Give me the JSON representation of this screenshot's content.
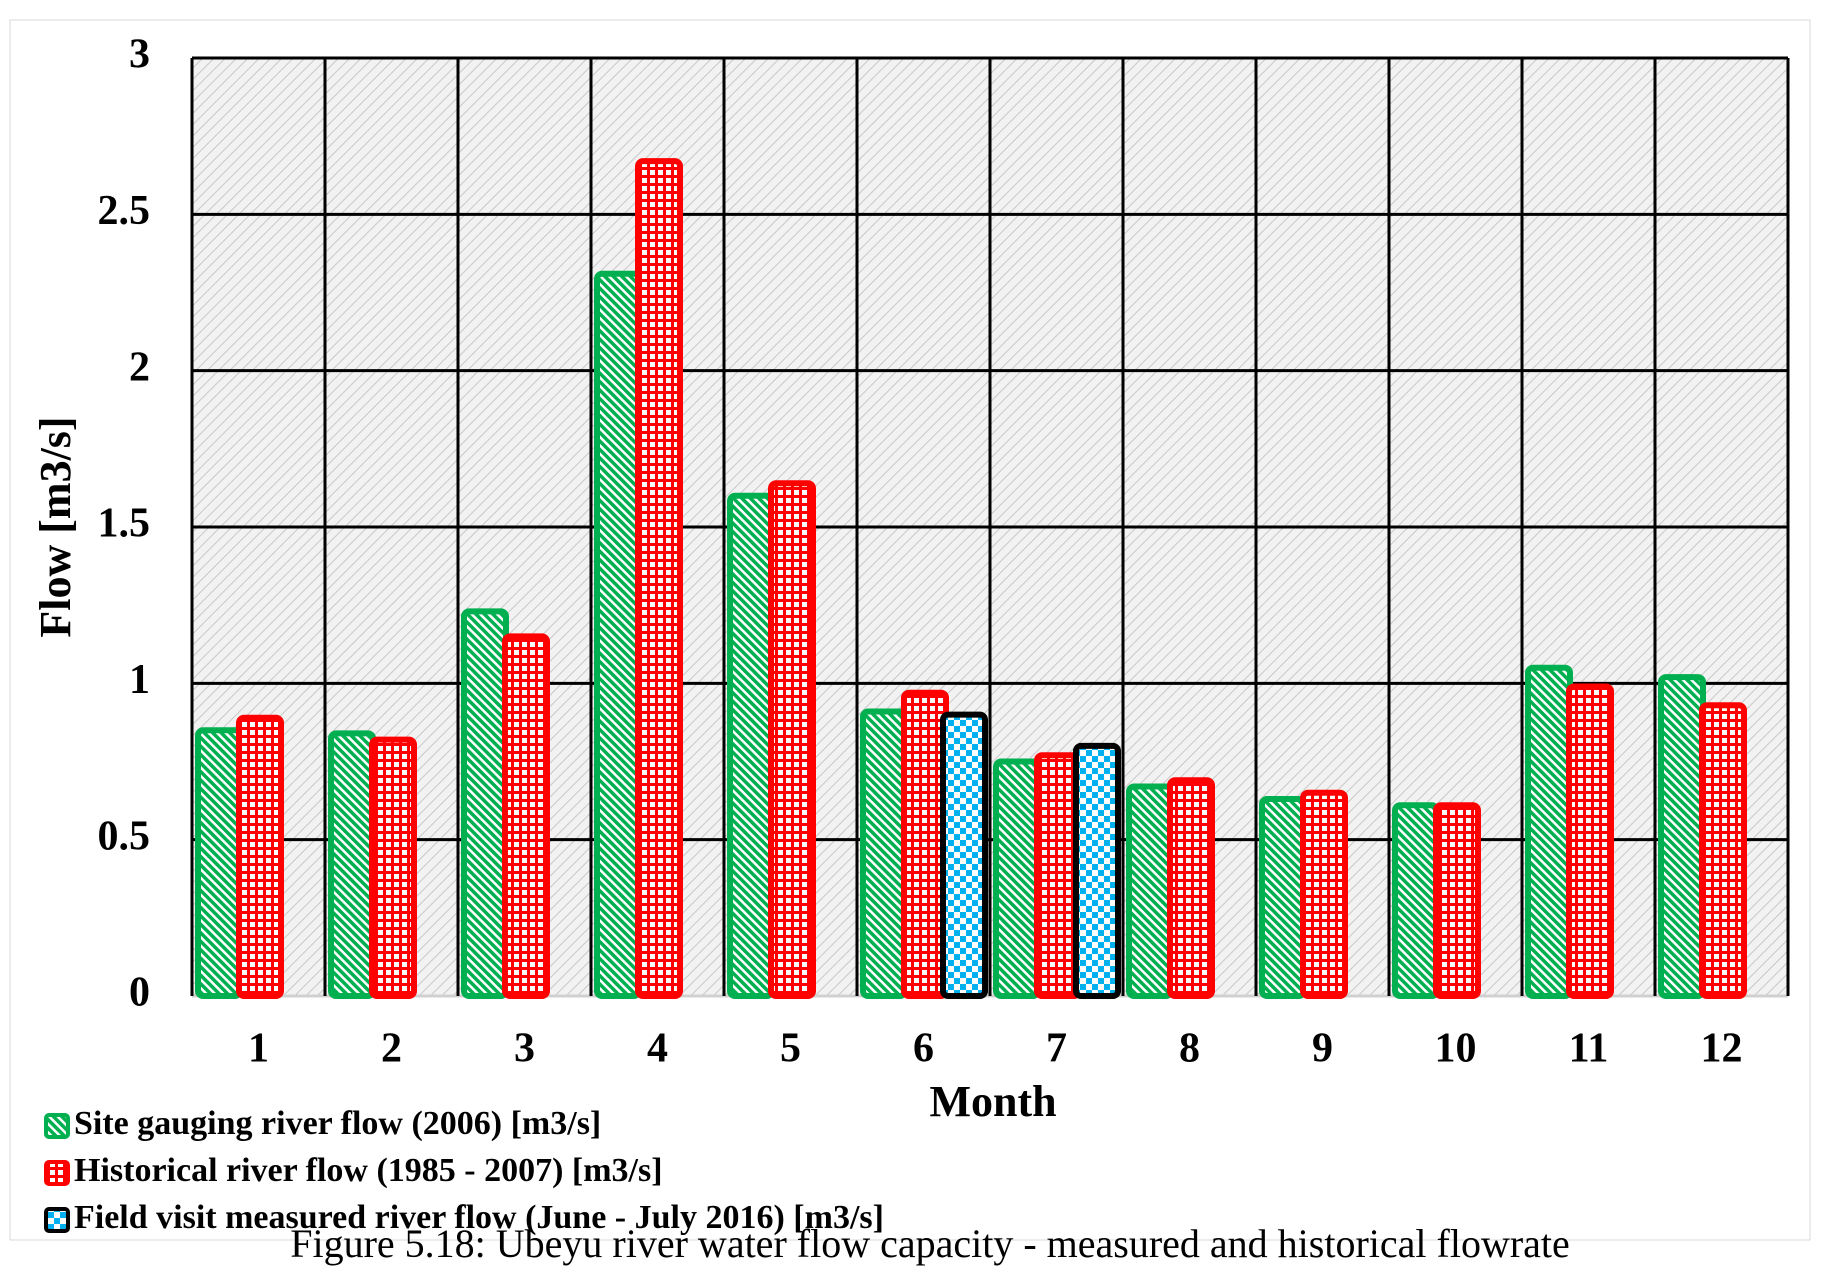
{
  "chart_data": {
    "type": "bar",
    "y_label": "Flow [m3/s]",
    "x_label": "Month",
    "caption": "Figure 5.18: Ubeyu river water flow capacity - measured and historical flowrate",
    "categories": [
      "1",
      "2",
      "3",
      "4",
      "5",
      "6",
      "7",
      "8",
      "9",
      "10",
      "11",
      "12"
    ],
    "series": [
      {
        "name": "Site gauging river flow (2006) [m3/s]",
        "color": "#00b050",
        "values": [
          0.85,
          0.84,
          1.23,
          2.31,
          1.6,
          0.91,
          0.75,
          0.67,
          0.63,
          0.61,
          1.05,
          1.02
        ]
      },
      {
        "name": "Historical river flow (1985 - 2007) [m3/s]",
        "color": "#ff0000",
        "values": [
          0.89,
          0.82,
          1.15,
          2.67,
          1.64,
          0.97,
          0.77,
          0.69,
          0.65,
          0.61,
          0.99,
          0.93
        ]
      },
      {
        "name": "Field visit measured river flow (June - July 2016) [m3/s]",
        "color": "#00b0f0",
        "values": [
          null,
          null,
          null,
          null,
          null,
          0.9,
          0.8,
          null,
          null,
          null,
          null,
          null
        ]
      }
    ],
    "ylim": [
      0,
      3
    ],
    "yticks": [
      0,
      0.5,
      1,
      1.5,
      2,
      2.5,
      3
    ],
    "grid": true
  }
}
